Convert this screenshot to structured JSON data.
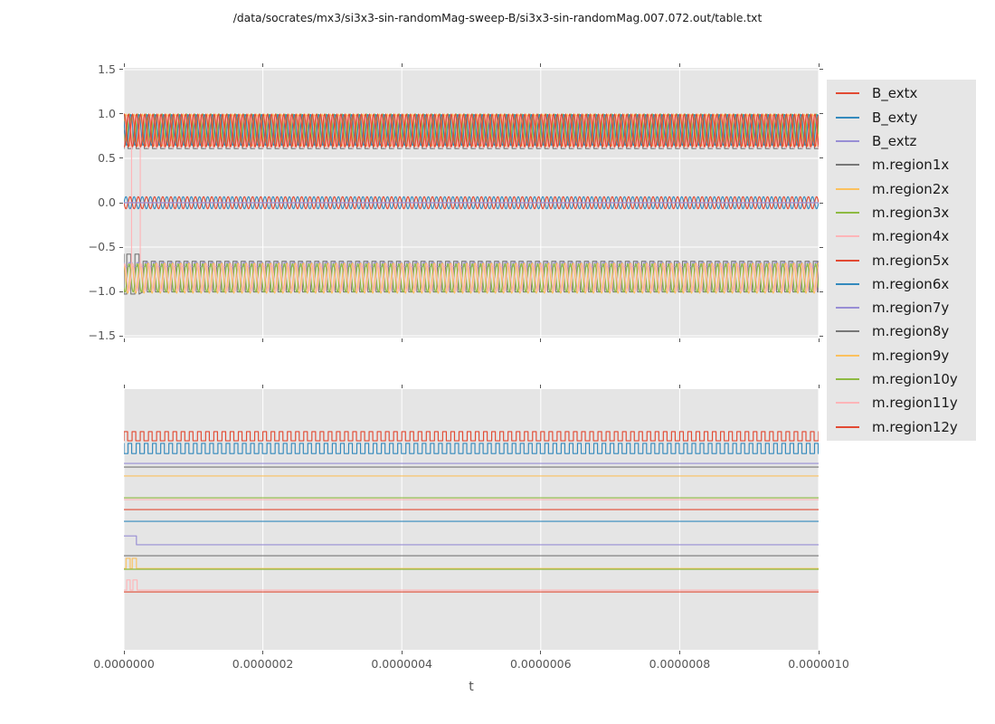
{
  "title": "/data/socrates/mx3/si3x3-sin-randomMag-sweep-B/si3x3-sin-randomMag.007.072.out/table.txt",
  "xlabel": "t",
  "colors": {
    "figure_bg": "#ffffff",
    "axes_bg": "#e5e5e5",
    "grid": "#ffffff",
    "tick": "#555555",
    "tick_label": "#555555",
    "title_text": "#1a1a1a",
    "legend_bg": "#e6e6e6",
    "palette_red": "#e24a33",
    "palette_blue": "#348abd",
    "palette_purple": "#988ed5",
    "palette_gray": "#777777",
    "palette_orange": "#fbc15e",
    "palette_green": "#8eba42",
    "palette_pink": "#ffb5b8"
  },
  "legend": {
    "position": "right-outside",
    "entries": [
      {
        "label": "B_extx",
        "color": "#e24a33"
      },
      {
        "label": "B_exty",
        "color": "#348abd"
      },
      {
        "label": "B_extz",
        "color": "#988ed5"
      },
      {
        "label": "m.region1x",
        "color": "#777777"
      },
      {
        "label": "m.region2x",
        "color": "#fbc15e"
      },
      {
        "label": "m.region3x",
        "color": "#8eba42"
      },
      {
        "label": "m.region4x",
        "color": "#ffb5b8"
      },
      {
        "label": "m.region5x",
        "color": "#e24a33"
      },
      {
        "label": "m.region6x",
        "color": "#348abd"
      },
      {
        "label": "m.region7y",
        "color": "#988ed5"
      },
      {
        "label": "m.region8y",
        "color": "#777777"
      },
      {
        "label": "m.region9y",
        "color": "#fbc15e"
      },
      {
        "label": "m.region10y",
        "color": "#8eba42"
      },
      {
        "label": "m.region11y",
        "color": "#ffb5b8"
      },
      {
        "label": "m.region12y",
        "color": "#e24a33"
      }
    ]
  },
  "chart_data": [
    {
      "type": "line",
      "id": "top",
      "xlim": [
        0,
        1e-06
      ],
      "ylim": [
        -1.52,
        1.52
      ],
      "grid": {
        "x": true,
        "y": true
      },
      "xticks": {
        "fractions": [
          0,
          0.2,
          0.4,
          0.6,
          0.8,
          1.0
        ],
        "labels": []
      },
      "yticks": {
        "values": [
          1.5,
          1.0,
          0.5,
          0.0,
          -0.5,
          -1.0,
          -1.5
        ],
        "labels": [
          "1.5",
          "1.0",
          "0.5",
          "0.0",
          "−0.5",
          "−1.0",
          "−1.5"
        ]
      },
      "note": "three oscillation bands: ~0.63..1.0 (x-components + B_extx band), ~±0.07 around 0 (B_ext field), ~-0.69..-1.0 (remaining components); pink transient spikes near t=0",
      "series": [
        {
          "name": "m.region1x",
          "color": "#777777",
          "type": "square",
          "hi": 0.985,
          "lo": 0.61,
          "freq": 85,
          "duty": 0.5,
          "phase": 0.0
        },
        {
          "name": "m.region8y",
          "color": "#777777",
          "type": "square",
          "hi": -0.66,
          "lo": -1.005,
          "freq": 85,
          "duty": 0.5,
          "phase": 0.35,
          "transient": {
            "until": 0.022,
            "hi": -0.58,
            "lo": -1.03
          }
        },
        {
          "name": "m.region7y",
          "color": "#988ed5",
          "type": "square",
          "hi": -0.675,
          "lo": -0.72,
          "freq": 85,
          "duty": 0.4,
          "phase": 0.6
        },
        {
          "name": "m.region2x",
          "color": "#fbc15e",
          "type": "sine",
          "center": 0.82,
          "amp": 0.18,
          "freq": 85,
          "phase": 0.0
        },
        {
          "name": "m.region9y",
          "color": "#fbc15e",
          "type": "sine",
          "center": -0.85,
          "amp": 0.17,
          "freq": 85,
          "phase": 0.3
        },
        {
          "name": "m.region3x",
          "color": "#8eba42",
          "type": "sine",
          "center": -0.848,
          "amp": 0.16,
          "freq": 85,
          "phase": 0.62
        },
        {
          "name": "m.region10y",
          "color": "#8eba42",
          "type": "sine",
          "center": 0.825,
          "amp": 0.175,
          "freq": 85,
          "phase": 0.55
        },
        {
          "name": "m.region4x",
          "color": "#ffb5b8",
          "type": "sine",
          "center": -0.845,
          "amp": 0.155,
          "freq": 85,
          "phase": 0.15,
          "spikes": [
            {
              "t": 0.011,
              "to": 0.96
            },
            {
              "t": 0.0235,
              "to": 0.96
            }
          ]
        },
        {
          "name": "m.region11y",
          "color": "#ffb5b8",
          "type": "sine",
          "center": 0.8,
          "amp": 0.185,
          "freq": 85,
          "phase": 0.8
        },
        {
          "name": "m.region6x",
          "color": "#348abd",
          "type": "sine",
          "center": 0.82,
          "amp": 0.175,
          "freq": 85,
          "phase": 0.4
        },
        {
          "name": "B_exty",
          "color": "#348abd",
          "type": "sine",
          "center": 0.0,
          "amp": 0.068,
          "freq": 85,
          "phase": 0.0
        },
        {
          "name": "B_extx",
          "color": "#e24a33",
          "type": "sine",
          "center": 0.0,
          "amp": 0.068,
          "freq": 85,
          "phase": 0.5
        },
        {
          "name": "B_extz",
          "color": "#988ed5",
          "type": "const",
          "value": 0.0
        },
        {
          "name": "m.region5x",
          "color": "#e24a33",
          "type": "sine",
          "center": 0.815,
          "amp": 0.185,
          "freq": 85,
          "phase": 0.2
        },
        {
          "name": "m.region12y",
          "color": "#e24a33",
          "type": "sine",
          "center": 0.815,
          "amp": 0.185,
          "freq": 85,
          "phase": 0.7
        }
      ]
    },
    {
      "type": "line",
      "id": "bottom",
      "xlim": [
        0,
        1e-06
      ],
      "ylim": [
        0,
        1
      ],
      "grid": {
        "x": true,
        "y": false
      },
      "xticks": {
        "fractions": [
          0,
          0.2,
          0.4,
          0.6,
          0.8,
          1.0
        ],
        "labels": [
          "0.0000000",
          "0.0000002",
          "0.0000004",
          "0.0000006",
          "0.0000008",
          "0.0000010"
        ]
      },
      "yticks": {
        "values": [],
        "labels": []
      },
      "note": "logic-analyzer style strip: one offset trace per signal, legend order top to bottom; y positions are normalized axes fractions",
      "series": [
        {
          "name": "B_extx",
          "color": "#e24a33",
          "type": "square",
          "hi": 0.837,
          "lo": 0.802,
          "freq": 85,
          "duty": 0.45,
          "phase": 0.0
        },
        {
          "name": "B_exty",
          "color": "#348abd",
          "type": "square",
          "hi": 0.792,
          "lo": 0.753,
          "freq": 85,
          "duty": 0.45,
          "phase": 0.5
        },
        {
          "name": "B_extz",
          "color": "#988ed5",
          "type": "const",
          "value": 0.715
        },
        {
          "name": "m.region1x",
          "color": "#777777",
          "type": "const",
          "value": 0.701
        },
        {
          "name": "m.region2x",
          "color": "#fbc15e",
          "type": "const",
          "value": 0.667
        },
        {
          "name": "m.region3x",
          "color": "#8eba42",
          "type": "const",
          "value": 0.583
        },
        {
          "name": "m.region4x",
          "color": "#ffb5b8",
          "type": "const",
          "value": 0.576
        },
        {
          "name": "m.region5x",
          "color": "#e24a33",
          "type": "const",
          "value": 0.538
        },
        {
          "name": "m.region6x",
          "color": "#348abd",
          "type": "const",
          "value": 0.493
        },
        {
          "name": "m.region7y",
          "color": "#988ed5",
          "type": "step",
          "from": 0.437,
          "to": 0.403,
          "at": 0.018
        },
        {
          "name": "m.region8y",
          "color": "#777777",
          "type": "const",
          "value": 0.361
        },
        {
          "name": "m.region9y",
          "color": "#fbc15e",
          "type": "pulses",
          "base": 0.312,
          "top": 0.351,
          "intervals": [
            [
              0.003,
              0.009
            ],
            [
              0.012,
              0.018
            ]
          ]
        },
        {
          "name": "m.region10y",
          "color": "#8eba42",
          "type": "const",
          "value": 0.309
        },
        {
          "name": "m.region11y",
          "color": "#ffb5b8",
          "type": "pulses",
          "base": 0.229,
          "top": 0.268,
          "intervals": [
            [
              0.004,
              0.009
            ],
            [
              0.013,
              0.019
            ]
          ]
        },
        {
          "name": "m.region12y",
          "color": "#e24a33",
          "type": "const",
          "value": 0.222
        }
      ]
    }
  ],
  "layout_text": {
    "xtick_labels_shown_under": "bottom axes only",
    "ytick_labels_shown_left_of": "top axes only"
  }
}
